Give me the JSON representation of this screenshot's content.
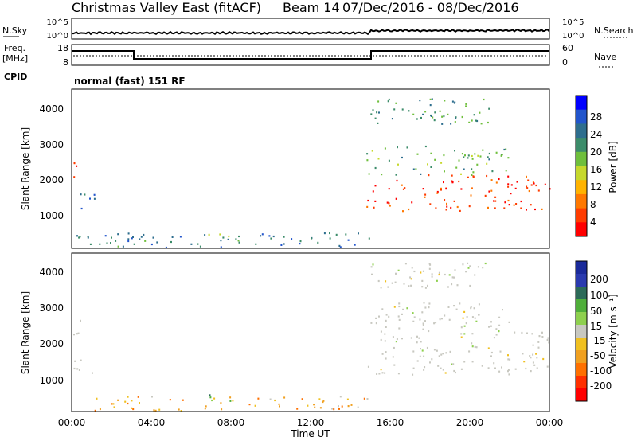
{
  "header": {
    "title": "Christmas Valley East (fitACF)",
    "beam": "Beam 14",
    "date_range": "07/Dec/2016 - 08/Dec/2016"
  },
  "top_panels": {
    "noise_label": "N.Sky",
    "noise_ticks": [
      "10^5",
      "10^0"
    ],
    "noise_right_ticks": [
      "10^5",
      "10^0"
    ],
    "search_label": "N.Search",
    "freq_label": "Freq.",
    "freq_unit": "[MHz]",
    "freq_ticks": [
      "18",
      "8"
    ],
    "nave_ticks": [
      "60",
      "0"
    ],
    "nave_label": "Nave",
    "cpid_label": "CPID",
    "cpid_value": "normal (fast) 151 RF"
  },
  "colors": {
    "power_scale": [
      "#0000ff",
      "#2255cc",
      "#2e6e8e",
      "#3c8c6a",
      "#6fbf3c",
      "#c6d82c",
      "#ffb300",
      "#ff7800",
      "#ff3c00",
      "#ff0000"
    ],
    "velocity_scale": [
      "#1a2a9a",
      "#2a3aaf",
      "#2c6a58",
      "#4fae3a",
      "#8ed04e",
      "#c8c8c0",
      "#f0c020",
      "#f0a020",
      "#ff7000",
      "#ff3000",
      "#ff0000"
    ],
    "ground_scatter": "#c8c8c0"
  },
  "chart_data": [
    {
      "type": "heatmap",
      "name": "power",
      "ylabel": "Slant Range [km]",
      "yticks": [
        "4000",
        "3000",
        "2000",
        "1000"
      ],
      "ylim": [
        200,
        4500
      ],
      "colorbar_label": "Power [dB]",
      "colorbar_ticks": [
        "28",
        "24",
        "20",
        "16",
        "12",
        "8",
        "4"
      ],
      "x_hours": [
        0,
        24
      ],
      "features": [
        {
          "t0": 0.0,
          "t1": 0.3,
          "r0": 2000,
          "r1": 2700,
          "level": 0.85
        },
        {
          "t0": 0.1,
          "t1": 1.2,
          "r0": 1200,
          "r1": 1700,
          "level": 0.2
        },
        {
          "t0": 6.8,
          "t1": 8.0,
          "r0": 500,
          "r1": 650,
          "level": 0.6
        },
        {
          "t0": 0.0,
          "t1": 15.0,
          "r0": 200,
          "r1": 600,
          "level": 0.25
        },
        {
          "t0": 14.8,
          "t1": 24.0,
          "r0": 1200,
          "r1": 2200,
          "level": 0.9
        },
        {
          "t0": 14.8,
          "t1": 22.0,
          "r0": 2200,
          "r1": 3000,
          "level": 0.4
        },
        {
          "t0": 15.0,
          "t1": 21.0,
          "r0": 3600,
          "r1": 4300,
          "level": 0.35
        }
      ]
    },
    {
      "type": "heatmap",
      "name": "velocity",
      "ylabel": "Slant Range [km]",
      "yticks": [
        "4000",
        "3000",
        "2000",
        "1000"
      ],
      "ylim": [
        200,
        4500
      ],
      "xlabel": "Time UT",
      "xticks": [
        "00:00",
        "04:00",
        "08:00",
        "12:00",
        "16:00",
        "20:00",
        "00:00"
      ],
      "colorbar_label": "Velocity [m s⁻¹]",
      "colorbar_ticks": [
        "200",
        "100",
        "50",
        "15",
        "-15",
        "-50",
        "-100",
        "-200"
      ],
      "x_hours": [
        0,
        24
      ],
      "features": [
        {
          "t0": 0.0,
          "t1": 0.4,
          "r0": 2100,
          "r1": 2700,
          "level": 0.5
        },
        {
          "t0": 0.1,
          "t1": 1.2,
          "r0": 1200,
          "r1": 1700,
          "level": 0.5
        },
        {
          "t0": 6.8,
          "t1": 8.0,
          "r0": 450,
          "r1": 650,
          "level": 0.25
        },
        {
          "t0": 0.0,
          "t1": 15.0,
          "r0": 200,
          "r1": 600,
          "level": 0.65
        },
        {
          "t0": 14.8,
          "t1": 24.0,
          "r0": 1200,
          "r1": 2400,
          "level": 0.5
        },
        {
          "t0": 15.0,
          "t1": 22.0,
          "r0": 2400,
          "r1": 3200,
          "level": 0.5
        },
        {
          "t0": 15.0,
          "t1": 21.0,
          "r0": 3600,
          "r1": 4300,
          "level": 0.5
        }
      ]
    }
  ]
}
